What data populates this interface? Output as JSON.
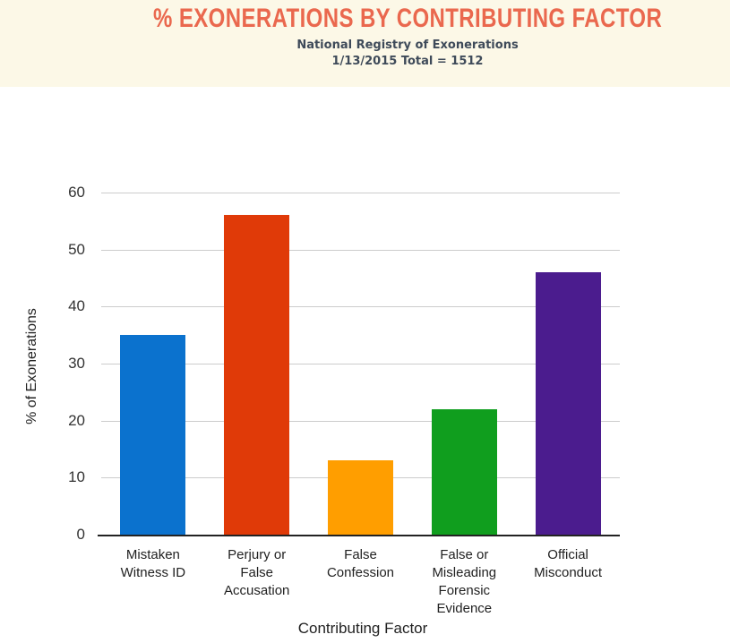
{
  "header": {
    "title": "% EXONERATIONS BY CONTRIBUTING FACTOR",
    "subtitle_line1": "National Registry of Exonerations",
    "subtitle_line2": "1/13/2015 Total = 1512"
  },
  "colors": {
    "page_bg": "#FFFFFF",
    "header_bg": "#FCF8E7",
    "title_color": "#EA684E",
    "subtitle_color": "#3E4A59",
    "grid_color": "#CCCCCC",
    "axis_color": "#222222",
    "tick_color": "#333333",
    "label_color": "#222222"
  },
  "chart_data": {
    "type": "bar",
    "title": "% EXONERATIONS BY CONTRIBUTING FACTOR",
    "subtitle": "National Registry of Exonerations 1/13/2015 Total = 1512",
    "categories": [
      "Mistaken Witness ID",
      "Perjury or False Accusation",
      "False Confession",
      "False or Misleading Forensic Evidence",
      "Official Misconduct"
    ],
    "category_lines": [
      [
        "Mistaken",
        "Witness ID"
      ],
      [
        "Perjury or",
        "False",
        "Accusation"
      ],
      [
        "False",
        "Confession"
      ],
      [
        "False or",
        "Misleading",
        "Forensic",
        "Evidence"
      ],
      [
        "Official",
        "Misconduct"
      ]
    ],
    "values": [
      35,
      56,
      13,
      22,
      46
    ],
    "bar_colors": [
      "#0B72CE",
      "#E03A08",
      "#FF9E00",
      "#109E1E",
      "#4B1C8E"
    ],
    "xlabel": "Contributing Factor",
    "ylabel": "% of Exonerations",
    "ylim": [
      0,
      60
    ],
    "yticks": [
      0,
      10,
      20,
      30,
      40,
      50,
      60
    ],
    "grid": true,
    "legend": "none"
  }
}
